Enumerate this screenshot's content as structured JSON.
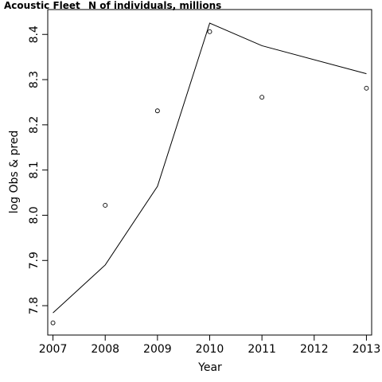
{
  "chart_data": {
    "type": "scatter",
    "title": "Acoustic Fleet",
    "subtitle": "N of individuals, millions",
    "xlabel": "Year",
    "ylabel": "log Obs & pred",
    "xlim": [
      2006.9,
      2013.1
    ],
    "ylim": [
      7.735,
      8.455
    ],
    "x_ticks": [
      2007,
      2008,
      2009,
      2010,
      2011,
      2012,
      2013
    ],
    "y_ticks": [
      7.8,
      7.9,
      8.0,
      8.1,
      8.2,
      8.3,
      8.4
    ],
    "grid": false,
    "series": [
      {
        "kind": "points",
        "x": [
          2007,
          2008,
          2009,
          2010,
          2011,
          2013
        ],
        "y": [
          7.762,
          8.022,
          8.231,
          8.406,
          8.261,
          8.281
        ]
      },
      {
        "kind": "line",
        "x": [
          2007,
          2008,
          2009,
          2010,
          2011,
          2013
        ],
        "y": [
          7.784,
          7.89,
          8.064,
          8.425,
          8.375,
          8.313
        ]
      }
    ]
  }
}
